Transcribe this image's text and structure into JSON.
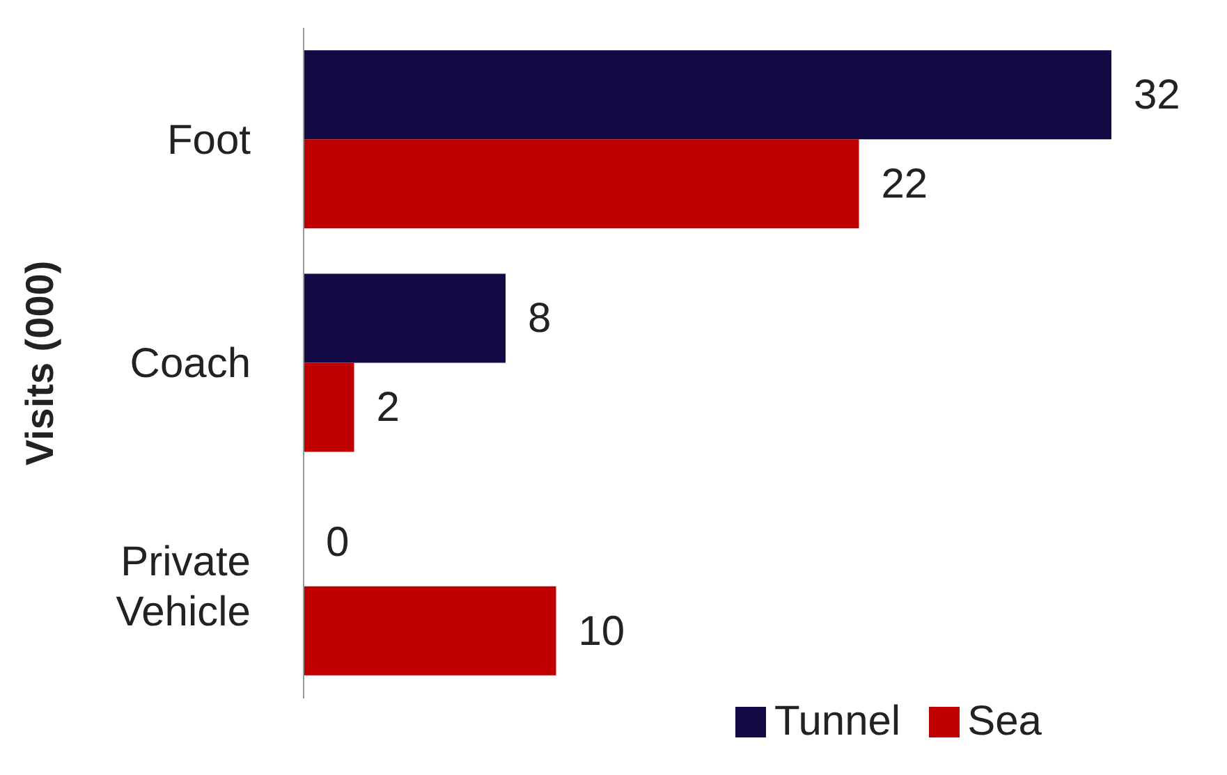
{
  "chart_data": {
    "type": "bar",
    "orientation": "horizontal",
    "ylabel": "Visits (000)",
    "categories": [
      "Foot",
      "Coach",
      "Private Vehicle"
    ],
    "series": [
      {
        "name": "Tunnel",
        "color": "#140a45",
        "values": [
          32,
          8,
          0
        ]
      },
      {
        "name": "Sea",
        "color": "#c00000",
        "values": [
          22,
          2,
          10
        ]
      }
    ],
    "data_labels": true,
    "legend": "bottom",
    "grid": false
  }
}
